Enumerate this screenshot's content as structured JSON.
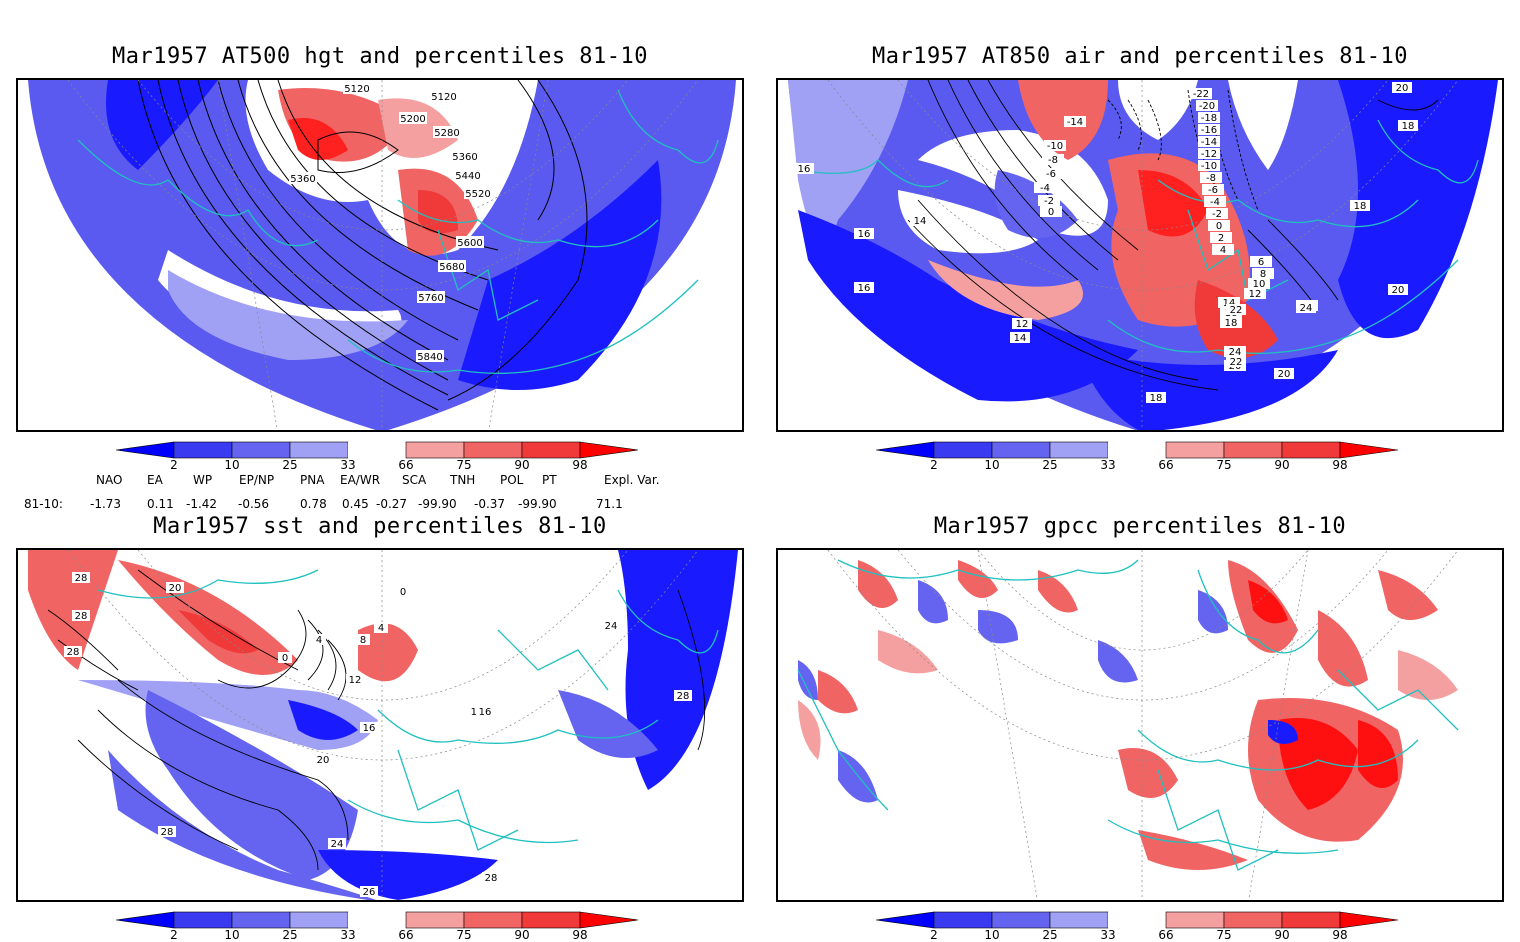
{
  "panels": [
    {
      "title": "Mar1957 AT500 hgt and percentiles 81-10",
      "contour_labels": [
        "5120",
        "5120",
        "5200",
        "5280",
        "5360",
        "5360",
        "5440",
        "5520",
        "5600",
        "5680",
        "5760",
        "5840"
      ]
    },
    {
      "title": "Mar1957 AT850 air and percentiles 81-10",
      "contour_labels": [
        "-22",
        "-20",
        "-18",
        "-16",
        "-14",
        "-12",
        "-10",
        "-8",
        "-6",
        "-4",
        "-2",
        "0",
        "2",
        "4",
        "6",
        "8",
        "10",
        "12",
        "14",
        "16",
        "18",
        "20",
        "22",
        "24",
        "-14",
        "-10",
        "-8",
        "-6",
        "-4",
        "-2",
        "0",
        "16",
        "16",
        "16",
        "14",
        "14",
        "12",
        "18",
        "18",
        "18",
        "20",
        "20",
        "20",
        "22",
        "22",
        "24"
      ]
    },
    {
      "title": "Mar1957 sst and percentiles 81-10",
      "contour_labels": [
        "28",
        "28",
        "28",
        "20",
        "0",
        "4",
        "8",
        "12",
        "16",
        "20",
        "24",
        "28",
        "26",
        "28",
        "0",
        "4",
        "16",
        "24",
        "28",
        "16"
      ]
    },
    {
      "title": "Mar1957 gpcc percentiles 81-10",
      "contour_labels": []
    }
  ],
  "colorbar": {
    "ticks": [
      "2",
      "10",
      "25",
      "33",
      "66",
      "75",
      "90",
      "98"
    ],
    "colors": [
      "#0000ff",
      "#3a3af0",
      "#6464f0",
      "#a0a0f5",
      "#ffffff",
      "#f5a0a0",
      "#f06464",
      "#f03a3a",
      "#ff0000"
    ]
  },
  "indices": {
    "headers": [
      "NAO",
      "EA",
      "WP",
      "EP/NP",
      "PNA",
      "EA/WR",
      "SCA",
      "TNH",
      "POL",
      "PT",
      "Expl. Var."
    ],
    "row_label": "81-10:",
    "values": [
      "-1.73",
      "0.11",
      "-1.42",
      "-0.56",
      "0.78",
      "0.45",
      "-0.27",
      "-99.90",
      "-0.37",
      "-99.90",
      "71.1"
    ]
  },
  "colors": {
    "map_outline": "#20c0c0",
    "contour": "#000000"
  }
}
